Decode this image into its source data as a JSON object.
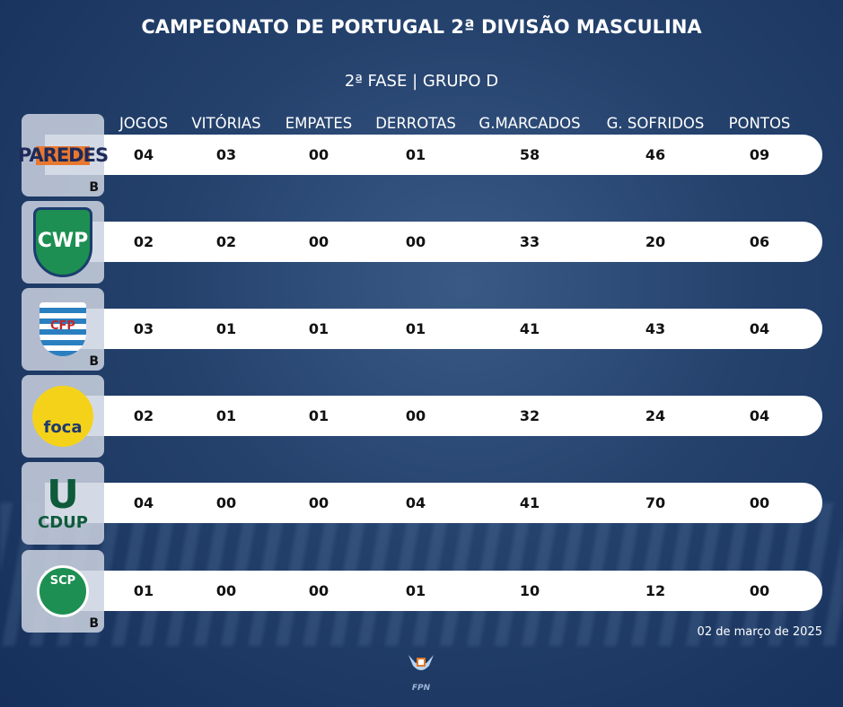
{
  "title": "CAMPEONATO DE PORTUGAL 2ª DIVISÃO MASCULINA",
  "subtitle": "2ª FASE | GRUPO D",
  "headers": [
    "JOGOS",
    "VITÓRIAS",
    "EMPATES",
    "DERROTAS",
    "G.MARCADOS",
    "G. SOFRIDOS",
    "PONTOS"
  ],
  "rows": [
    {
      "logo": "PAREDES",
      "badge": "B",
      "values": [
        "04",
        "03",
        "00",
        "01",
        "58",
        "46",
        "09"
      ]
    },
    {
      "logo": "CWP",
      "badge": "",
      "values": [
        "02",
        "02",
        "00",
        "00",
        "33",
        "20",
        "06"
      ]
    },
    {
      "logo": "CFP",
      "badge": "B",
      "values": [
        "03",
        "01",
        "01",
        "01",
        "41",
        "43",
        "04"
      ]
    },
    {
      "logo": "foca",
      "badge": "",
      "values": [
        "02",
        "01",
        "01",
        "00",
        "32",
        "24",
        "04"
      ]
    },
    {
      "logo": "CDUP",
      "badge": "",
      "values": [
        "04",
        "00",
        "00",
        "04",
        "41",
        "70",
        "00"
      ]
    },
    {
      "logo": "SCP",
      "badge": "B",
      "values": [
        "01",
        "00",
        "00",
        "01",
        "10",
        "12",
        "00"
      ]
    }
  ],
  "date": "02 de março de 2025",
  "footer_logo": "FPN"
}
